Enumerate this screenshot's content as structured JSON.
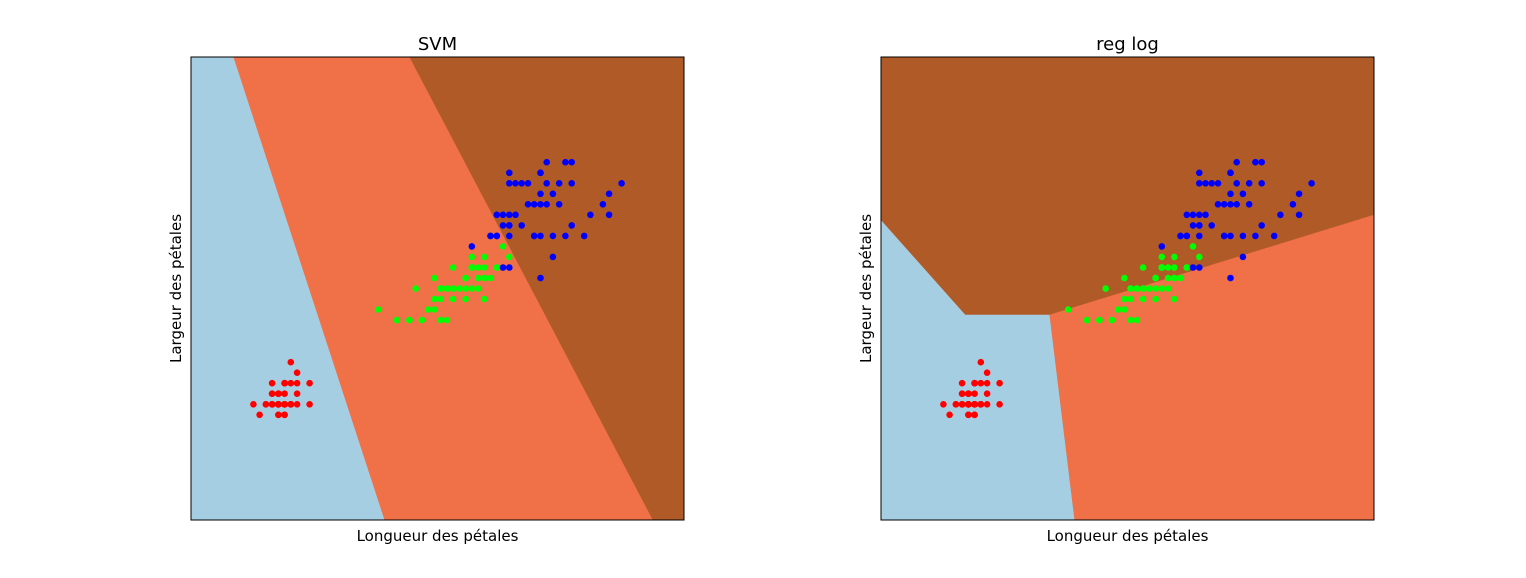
{
  "figure": {
    "background": "#ffffff"
  },
  "colors": {
    "region_setosa": "#a6cee3",
    "region_versicolor": "#f07048",
    "region_virginica": "#b05a28",
    "point_setosa": "#ff0000",
    "point_versicolor": "#00ff00",
    "point_virginica": "#0000ff"
  },
  "chart_data": [
    {
      "type": "scatter",
      "title": "SVM",
      "xlabel": "Longueur des pétales",
      "ylabel": "Largeur des pétales",
      "xlim": [
        0.0,
        7.9
      ],
      "ylim": [
        -0.9,
        3.5
      ],
      "xticks": [],
      "yticks": [],
      "grid": false,
      "legend": "none",
      "regions": {
        "model": "linear",
        "boundary_setosa_versicolor": [
          [
            0.68,
            3.5
          ],
          [
            3.1,
            -0.9
          ]
        ],
        "boundary_versicolor_virginica": [
          [
            3.5,
            3.5
          ],
          [
            7.4,
            -0.9
          ]
        ]
      }
    },
    {
      "type": "scatter",
      "title": "reg log",
      "xlabel": "Longueur des pétales",
      "ylabel": "Largeur des pétales",
      "xlim": [
        0.0,
        7.9
      ],
      "ylim": [
        -0.9,
        3.5
      ],
      "xticks": [],
      "yticks": [],
      "grid": false,
      "legend": "none",
      "regions": {
        "model": "logistic",
        "boundary_setosa_upper": [
          [
            0.0,
            1.95
          ],
          [
            1.35,
            1.05
          ]
        ],
        "boundary_setosa_versicolor": [
          [
            2.7,
            1.05
          ],
          [
            3.1,
            -0.9
          ]
        ],
        "boundary_versicolor_virginica": [
          [
            2.7,
            1.05
          ],
          [
            7.9,
            2.0
          ]
        ]
      }
    }
  ],
  "points": {
    "setosa": [
      [
        1.4,
        0.2
      ],
      [
        1.4,
        0.2
      ],
      [
        1.3,
        0.2
      ],
      [
        1.5,
        0.2
      ],
      [
        1.4,
        0.2
      ],
      [
        1.7,
        0.4
      ],
      [
        1.4,
        0.3
      ],
      [
        1.5,
        0.2
      ],
      [
        1.4,
        0.2
      ],
      [
        1.5,
        0.1
      ],
      [
        1.5,
        0.2
      ],
      [
        1.6,
        0.2
      ],
      [
        1.4,
        0.1
      ],
      [
        1.1,
        0.1
      ],
      [
        1.2,
        0.2
      ],
      [
        1.5,
        0.4
      ],
      [
        1.3,
        0.4
      ],
      [
        1.4,
        0.3
      ],
      [
        1.7,
        0.3
      ],
      [
        1.5,
        0.3
      ],
      [
        1.7,
        0.2
      ],
      [
        1.5,
        0.4
      ],
      [
        1.0,
        0.2
      ],
      [
        1.7,
        0.5
      ],
      [
        1.9,
        0.2
      ],
      [
        1.6,
        0.2
      ],
      [
        1.6,
        0.4
      ],
      [
        1.5,
        0.2
      ],
      [
        1.4,
        0.2
      ],
      [
        1.6,
        0.2
      ],
      [
        1.6,
        0.2
      ],
      [
        1.5,
        0.4
      ],
      [
        1.5,
        0.1
      ],
      [
        1.4,
        0.2
      ],
      [
        1.5,
        0.2
      ],
      [
        1.2,
        0.2
      ],
      [
        1.3,
        0.2
      ],
      [
        1.4,
        0.1
      ],
      [
        1.3,
        0.2
      ],
      [
        1.5,
        0.2
      ],
      [
        1.3,
        0.3
      ],
      [
        1.3,
        0.3
      ],
      [
        1.3,
        0.2
      ],
      [
        1.6,
        0.6
      ],
      [
        1.9,
        0.4
      ],
      [
        1.4,
        0.3
      ],
      [
        1.6,
        0.2
      ],
      [
        1.4,
        0.2
      ],
      [
        1.5,
        0.2
      ],
      [
        1.4,
        0.2
      ]
    ],
    "versicolor": [
      [
        4.7,
        1.4
      ],
      [
        4.5,
        1.5
      ],
      [
        4.9,
        1.5
      ],
      [
        4.0,
        1.3
      ],
      [
        4.6,
        1.5
      ],
      [
        4.5,
        1.3
      ],
      [
        4.7,
        1.6
      ],
      [
        3.3,
        1.0
      ],
      [
        4.6,
        1.3
      ],
      [
        3.9,
        1.4
      ],
      [
        3.5,
        1.0
      ],
      [
        4.2,
        1.5
      ],
      [
        4.0,
        1.0
      ],
      [
        4.7,
        1.4
      ],
      [
        3.6,
        1.3
      ],
      [
        4.4,
        1.4
      ],
      [
        4.5,
        1.5
      ],
      [
        4.1,
        1.0
      ],
      [
        4.5,
        1.5
      ],
      [
        3.9,
        1.1
      ],
      [
        4.8,
        1.8
      ],
      [
        4.0,
        1.3
      ],
      [
        4.9,
        1.5
      ],
      [
        4.7,
        1.2
      ],
      [
        4.3,
        1.3
      ],
      [
        4.4,
        1.4
      ],
      [
        4.8,
        1.4
      ],
      [
        5.0,
        1.7
      ],
      [
        4.5,
        1.5
      ],
      [
        3.5,
        1.0
      ],
      [
        3.8,
        1.1
      ],
      [
        3.7,
        1.0
      ],
      [
        3.9,
        1.2
      ],
      [
        5.1,
        1.6
      ],
      [
        4.5,
        1.5
      ],
      [
        4.5,
        1.6
      ],
      [
        4.7,
        1.5
      ],
      [
        4.4,
        1.3
      ],
      [
        4.1,
        1.3
      ],
      [
        4.0,
        1.3
      ],
      [
        4.4,
        1.2
      ],
      [
        4.6,
        1.4
      ],
      [
        4.0,
        1.2
      ],
      [
        3.3,
        1.0
      ],
      [
        4.2,
        1.3
      ],
      [
        4.2,
        1.2
      ],
      [
        4.2,
        1.3
      ],
      [
        4.3,
        1.3
      ],
      [
        3.0,
        1.1
      ],
      [
        4.1,
        1.3
      ]
    ],
    "virginica": [
      [
        6.0,
        2.5
      ],
      [
        5.1,
        1.9
      ],
      [
        5.9,
        2.1
      ],
      [
        5.6,
        1.8
      ],
      [
        5.8,
        2.2
      ],
      [
        6.6,
        2.1
      ],
      [
        4.5,
        1.7
      ],
      [
        6.3,
        1.8
      ],
      [
        5.8,
        1.8
      ],
      [
        6.1,
        2.5
      ],
      [
        5.1,
        2.0
      ],
      [
        5.3,
        1.9
      ],
      [
        5.5,
        2.1
      ],
      [
        5.0,
        2.0
      ],
      [
        5.1,
        2.4
      ],
      [
        5.3,
        2.3
      ],
      [
        5.5,
        1.8
      ],
      [
        6.7,
        2.2
      ],
      [
        6.9,
        2.3
      ],
      [
        5.0,
        1.5
      ],
      [
        5.7,
        2.3
      ],
      [
        4.9,
        2.0
      ],
      [
        6.7,
        2.0
      ],
      [
        4.9,
        1.8
      ],
      [
        5.7,
        2.1
      ],
      [
        6.0,
        1.8
      ],
      [
        4.8,
        1.8
      ],
      [
        4.9,
        1.8
      ],
      [
        5.6,
        2.1
      ],
      [
        5.8,
        1.6
      ],
      [
        6.1,
        1.9
      ],
      [
        6.4,
        2.0
      ],
      [
        5.6,
        2.2
      ],
      [
        5.1,
        1.5
      ],
      [
        5.6,
        1.4
      ],
      [
        6.1,
        2.3
      ],
      [
        5.6,
        2.4
      ],
      [
        5.5,
        1.8
      ],
      [
        4.8,
        1.8
      ],
      [
        5.4,
        2.1
      ],
      [
        5.6,
        2.4
      ],
      [
        5.1,
        2.3
      ],
      [
        5.1,
        1.9
      ],
      [
        5.9,
        2.3
      ],
      [
        5.7,
        2.5
      ],
      [
        5.2,
        2.3
      ],
      [
        5.0,
        1.9
      ],
      [
        5.2,
        2.0
      ],
      [
        5.4,
        2.3
      ],
      [
        5.1,
        1.8
      ]
    ]
  }
}
